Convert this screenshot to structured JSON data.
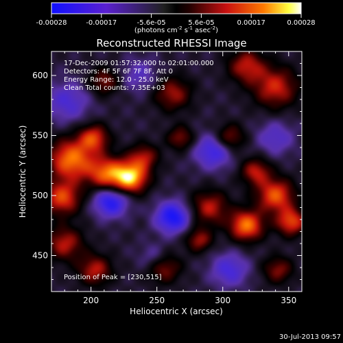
{
  "colorbar": {
    "tick_labels": [
      "-0.00028",
      "-0.00017",
      "-5.6e-05",
      "5.6e-05",
      "0.00017",
      "0.00028"
    ],
    "unit_main": "(photons cm",
    "unit_exp1": "-2",
    "unit_mid": " s",
    "unit_exp2": "-1",
    "unit_mid2": " asec",
    "unit_exp3": "-2",
    "unit_end": ")"
  },
  "chart_data": {
    "type": "heatmap",
    "title": "Reconstructed RHESSI Image",
    "xlabel": "Heliocentric X (arcsec)",
    "ylabel": "Heliocentric Y (arcsec)",
    "xlim": [
      170,
      360
    ],
    "ylim": [
      420,
      620
    ],
    "x_ticks": [
      200,
      250,
      300,
      350
    ],
    "y_ticks": [
      450,
      500,
      550,
      600
    ],
    "x_tick_labels": [
      "200",
      "250",
      "300",
      "350"
    ],
    "y_tick_labels": [
      "450",
      "500",
      "550",
      "600"
    ],
    "colorscale_range": [
      -0.00028,
      0.00028
    ],
    "info_lines": [
      "17-Dec-2009 01:57:32.000 to 02:01:00.000",
      "Detectors: 4F 5F 6F 7F 8F, Att 0",
      "Energy Range: 12.0 - 25.0 keV",
      "Clean     Total counts: 7.35E+03"
    ],
    "peak_label": "Position of Peak = [230,515]",
    "peak": [
      230,
      515
    ],
    "sources": [
      {
        "x": 230,
        "y": 515,
        "a": 1.0,
        "s": 9
      },
      {
        "x": 212,
        "y": 518,
        "a": 0.75,
        "s": 10
      },
      {
        "x": 185,
        "y": 530,
        "a": 0.85,
        "s": 12
      },
      {
        "x": 178,
        "y": 498,
        "a": 0.7,
        "s": 10
      },
      {
        "x": 202,
        "y": 548,
        "a": 0.65,
        "s": 8
      },
      {
        "x": 240,
        "y": 532,
        "a": 0.5,
        "s": 8
      },
      {
        "x": 180,
        "y": 460,
        "a": 0.55,
        "s": 10
      },
      {
        "x": 203,
        "y": 438,
        "a": 0.55,
        "s": 9
      },
      {
        "x": 255,
        "y": 440,
        "a": 0.5,
        "s": 9
      },
      {
        "x": 290,
        "y": 490,
        "a": 0.55,
        "s": 10
      },
      {
        "x": 318,
        "y": 475,
        "a": 0.85,
        "s": 9
      },
      {
        "x": 340,
        "y": 500,
        "a": 0.75,
        "s": 10
      },
      {
        "x": 352,
        "y": 478,
        "a": 0.7,
        "s": 8
      },
      {
        "x": 325,
        "y": 520,
        "a": 0.55,
        "s": 8
      },
      {
        "x": 340,
        "y": 590,
        "a": 0.6,
        "s": 12
      },
      {
        "x": 318,
        "y": 608,
        "a": 0.55,
        "s": 10
      },
      {
        "x": 262,
        "y": 585,
        "a": 0.5,
        "s": 10
      },
      {
        "x": 305,
        "y": 548,
        "a": 0.5,
        "s": 8
      },
      {
        "x": 268,
        "y": 548,
        "a": 0.45,
        "s": 7
      },
      {
        "x": 210,
        "y": 595,
        "a": 0.45,
        "s": 8
      },
      {
        "x": 282,
        "y": 463,
        "a": 0.5,
        "s": 7
      },
      {
        "x": 342,
        "y": 438,
        "a": 0.45,
        "s": 8
      },
      {
        "x": 215,
        "y": 495,
        "a": -0.7,
        "s": 9
      },
      {
        "x": 262,
        "y": 482,
        "a": -0.75,
        "s": 9
      },
      {
        "x": 293,
        "y": 537,
        "a": -0.55,
        "s": 10
      },
      {
        "x": 305,
        "y": 438,
        "a": -0.45,
        "s": 10
      },
      {
        "x": 182,
        "y": 578,
        "a": -0.4,
        "s": 12
      },
      {
        "x": 340,
        "y": 548,
        "a": -0.35,
        "s": 10
      },
      {
        "x": 248,
        "y": 448,
        "a": -0.3,
        "s": 8
      },
      {
        "x": 237,
        "y": 600,
        "a": -0.3,
        "s": 10
      }
    ]
  },
  "footer": {
    "timestamp": "30-Jul-2013 09:57"
  }
}
